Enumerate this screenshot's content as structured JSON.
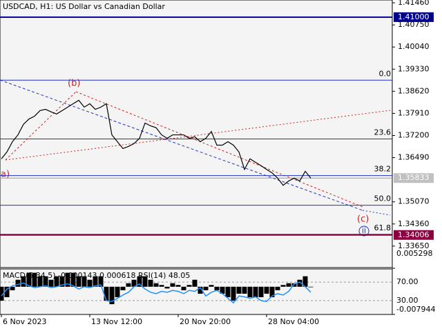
{
  "chart_data": [
    {
      "type": "line",
      "title": "USDCAD, H1:  US Dollar vs Canadian Dollar",
      "color": "#000000",
      "categories": [
        "6 Nov 2023",
        null,
        null,
        null,
        null,
        null,
        null,
        null,
        null,
        null,
        null,
        null,
        null,
        null,
        null,
        null,
        "13 Nov 12:00",
        null,
        null,
        null,
        null,
        null,
        null,
        null,
        null,
        null,
        null,
        null,
        null,
        null,
        null,
        null,
        "20 Nov 20:00",
        null,
        null,
        null,
        null,
        null,
        null,
        null,
        null,
        null,
        null,
        null,
        null,
        null,
        null,
        null,
        "28 Nov 04:00",
        null,
        null,
        null,
        null,
        null,
        null,
        null,
        null
      ],
      "values": [
        1.3645,
        1.3667,
        1.37,
        1.3722,
        1.3756,
        1.3773,
        1.3782,
        1.38,
        1.3804,
        1.3796,
        1.3789,
        1.38,
        1.3811,
        1.3822,
        1.3833,
        1.3811,
        1.3822,
        1.3804,
        1.3811,
        1.3822,
        1.3722,
        1.37,
        1.3678,
        1.3685,
        1.3694,
        1.3711,
        1.376,
        1.3751,
        1.3745,
        1.3722,
        1.3711,
        1.3722,
        1.3722,
        1.3722,
        1.3711,
        1.3716,
        1.37,
        1.3711,
        1.3733,
        1.3689,
        1.3689,
        1.37,
        1.3689,
        1.3667,
        1.3611,
        1.3645,
        1.3634,
        1.3623,
        1.3611,
        1.36,
        1.3583,
        1.356,
        1.3574,
        1.3583,
        1.3574,
        1.3605,
        1.35833
      ],
      "ylim": [
        1.3296,
        1.4155
      ],
      "yticks": [
        {
          "value": 1.4146,
          "label": "1.41460"
        },
        {
          "value": 1.4075,
          "label": "1.40750"
        },
        {
          "value": 1.4004,
          "label": "1.40040"
        },
        {
          "value": 1.3933,
          "label": "1.39330"
        },
        {
          "value": 1.3862,
          "label": "1.38620"
        },
        {
          "value": 1.3791,
          "label": "1.37910"
        },
        {
          "value": 1.372,
          "label": "1.37200"
        },
        {
          "value": 1.3649,
          "label": "1.36490"
        },
        {
          "value": 1.3507,
          "label": "1.35070"
        },
        {
          "value": 1.3436,
          "label": "1.34360"
        },
        {
          "value": 1.3365,
          "label": "1.33650"
        }
      ],
      "levels": [
        {
          "value": 1.41,
          "label": "1.41000",
          "color": "#00008b"
        },
        {
          "value": 1.34006,
          "label": "1.34006",
          "color": "#8b0040"
        }
      ],
      "current_price": {
        "value": 1.35833,
        "label": "1.35833"
      },
      "fib_levels": [
        {
          "level": "0.0",
          "price": 1.38976
        },
        {
          "level": "23.6",
          "price": 1.3709
        },
        {
          "level": "38.2",
          "price": 1.35914
        },
        {
          "level": "50.0",
          "price": 1.3496
        },
        {
          "level": "61.8",
          "price": 1.34028
        }
      ],
      "annotations": {
        "a": "a)",
        "b": "(b)",
        "c": "(c)",
        "ii": "ii"
      }
    },
    {
      "type": "macd",
      "title": "MACD(5,34,5) -0.000143 0.000618 RSI(14) 48.05",
      "color": "#000000",
      "rsi_color": "#1e90ff",
      "values": [
        -0.004,
        -0.003,
        -0.001,
        0.002,
        0.003,
        0.004,
        0.004,
        0.003,
        0.003,
        0.002,
        0.003,
        0.003,
        0.004,
        0.004,
        0.003,
        0.003,
        0.002,
        0.003,
        0.003,
        -0.004,
        -0.005,
        -0.003,
        -0.001,
        0.001,
        0.002,
        0.003,
        0.003,
        0.002,
        0.001,
        0.0005,
        -0.0005,
        0.001,
        0.0005,
        -0.001,
        0.0005,
        0.002,
        -0.002,
        -0.001,
        0.0005,
        -0.001,
        -0.002,
        -0.003,
        -0.004,
        -0.002,
        -0.002,
        -0.003,
        -0.003,
        -0.003,
        -0.002,
        -0.003,
        -0.001,
        0.0005,
        0.001,
        0.001,
        0.002,
        0.003,
        -0.000143
      ],
      "rsi": [
        40,
        55,
        62,
        65,
        68,
        62,
        58,
        60,
        62,
        58,
        60,
        64,
        66,
        62,
        55,
        60,
        58,
        62,
        64,
        30,
        28,
        35,
        42,
        48,
        60,
        66,
        55,
        48,
        45,
        50,
        48,
        52,
        50,
        45,
        52,
        50,
        58,
        40,
        48,
        52,
        45,
        35,
        25,
        40,
        38,
        35,
        38,
        30,
        28,
        40,
        45,
        42,
        50,
        66,
        70,
        60,
        48.05
      ],
      "ylim": [
        -0.007944,
        0.005298
      ],
      "yticks": [
        0.005298,
        -0.007944
      ],
      "y2lim": [
        0,
        100
      ],
      "y2ticks": [
        {
          "value": 70,
          "label": "70.00"
        },
        {
          "value": 30,
          "label": "30.00"
        }
      ]
    }
  ]
}
